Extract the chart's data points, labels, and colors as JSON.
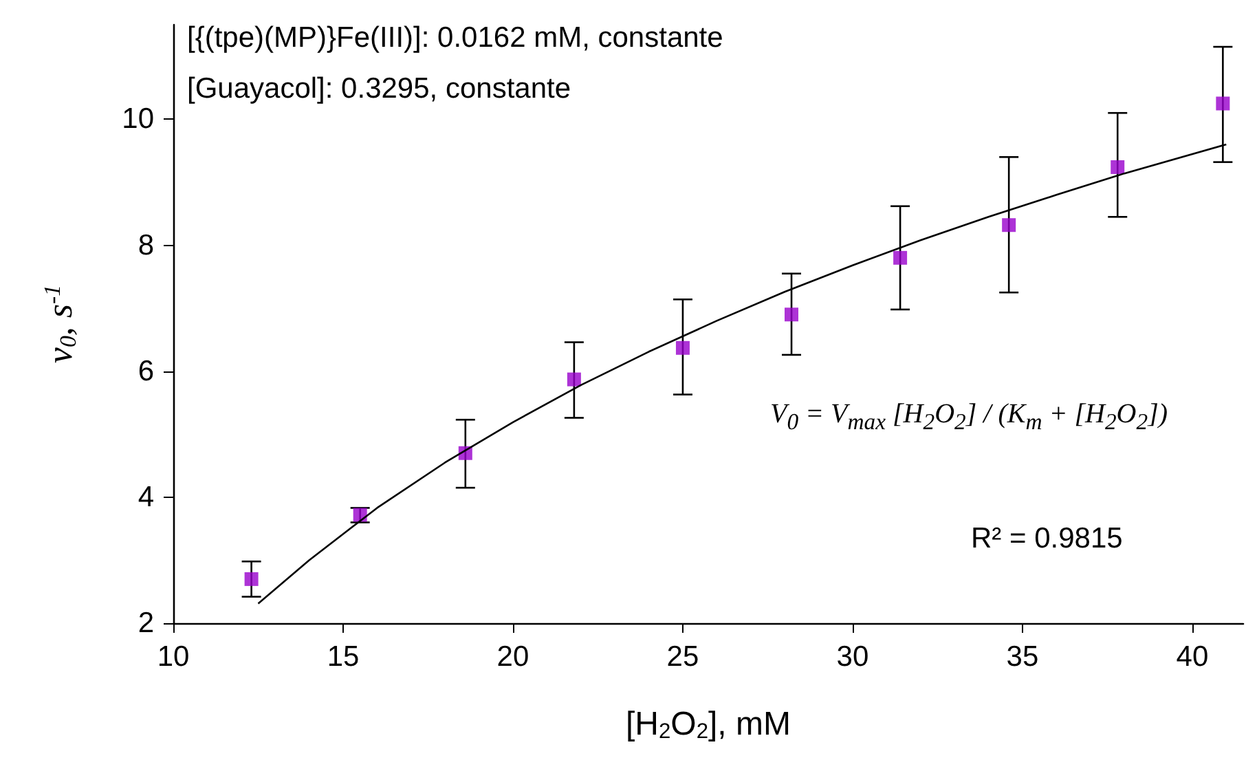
{
  "chart_data": {
    "type": "scatter",
    "xlabel": "[H$_{2}$O$_{2}$], mM",
    "ylabel": "v$_{0}$, s$^{-1}$",
    "annotations": [
      "[{(tpe)(MP)}Fe(III)]: 0.0162 mM, constante",
      "[Guayacol]: 0.3295, constante",
      "V$_{0}$ = V$_{max}$ [H$_{2}$O$_{2}$] / (K$_{m}$ + [H$_{2}$O$_{2}$])",
      "R² = 0.9815"
    ],
    "xlim": [
      10,
      41.5
    ],
    "xticks": [
      10,
      15,
      20,
      25,
      30,
      35,
      40
    ],
    "ylim": [
      2,
      11.5
    ],
    "yticks": [
      2,
      4,
      6,
      8,
      10
    ],
    "grid": false,
    "marker": "square",
    "series": [
      {
        "color": "#9900cc",
        "x": [
          12.3,
          15.5,
          18.6,
          21.8,
          25.0,
          28.2,
          31.4,
          34.6,
          37.8,
          40.9
        ],
        "values": [
          2.7,
          3.72,
          4.7,
          5.87,
          6.37,
          6.9,
          7.8,
          8.32,
          9.24,
          10.25
        ],
        "errors": [
          [
            2.42,
            2.98
          ],
          [
            3.6,
            3.83
          ],
          [
            4.15,
            5.23
          ],
          [
            5.26,
            6.46
          ],
          [
            5.63,
            7.14
          ],
          [
            6.26,
            7.55
          ],
          [
            6.98,
            8.62
          ],
          [
            7.25,
            9.4
          ],
          [
            8.45,
            10.1
          ],
          [
            9.32,
            11.15
          ]
        ]
      },
      {
        "type": "line",
        "color": "#000000",
        "marker": "none",
        "line_style": "solid",
        "x": [
          12.5,
          14,
          16,
          18,
          20,
          22,
          24,
          26,
          28,
          30,
          32,
          34,
          36,
          38,
          41
        ],
        "values": [
          2.31,
          3.0,
          3.83,
          4.55,
          5.19,
          5.78,
          6.31,
          6.8,
          7.26,
          7.68,
          8.08,
          8.45,
          8.8,
          9.14,
          9.6
        ]
      }
    ]
  }
}
